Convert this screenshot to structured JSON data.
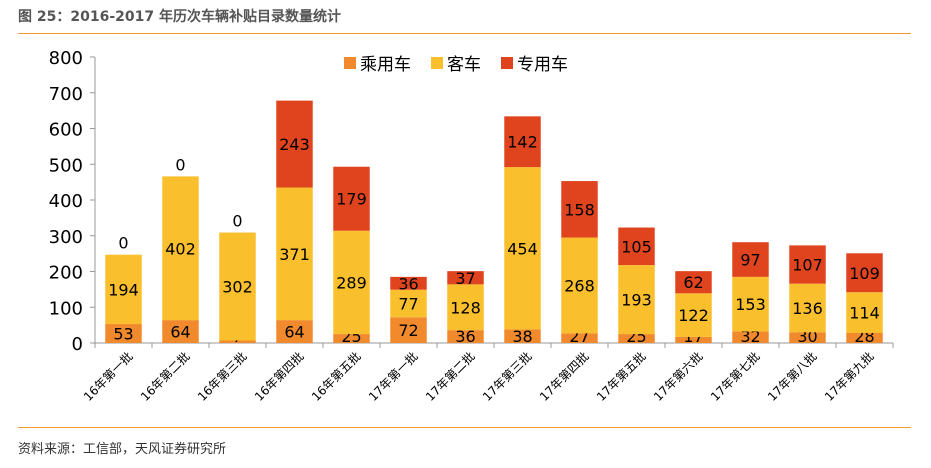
{
  "header": {
    "title": "图 25：2016-2017 年历次车辆补贴目录数量统计"
  },
  "footer": {
    "source": "资料来源：工信部，天风证券研究所"
  },
  "colors": {
    "accent_rule": "#F39A2E",
    "passenger": "#F08A2C",
    "bus": "#FABF2D",
    "special": "#E0441F"
  },
  "chart_data": {
    "type": "bar",
    "stacked": true,
    "categories": [
      "16年第一批",
      "16年第二批",
      "16年第三批",
      "16年第四批",
      "16年第五批",
      "17年第一批",
      "17年第二批",
      "17年第三批",
      "17年第四批",
      "17年第五批",
      "17年第六批",
      "17年第七批",
      "17年第八批",
      "17年第九批"
    ],
    "series": [
      {
        "name": "乘用车",
        "color": "#F08A2C",
        "values": [
          53,
          64,
          7,
          64,
          25,
          72,
          36,
          38,
          27,
          25,
          17,
          32,
          30,
          28
        ]
      },
      {
        "name": "客车",
        "color": "#FABF2D",
        "values": [
          194,
          402,
          302,
          371,
          289,
          77,
          128,
          454,
          268,
          193,
          122,
          153,
          136,
          114
        ]
      },
      {
        "name": "专用车",
        "color": "#E0441F",
        "values": [
          0,
          0,
          0,
          243,
          179,
          36,
          37,
          142,
          158,
          105,
          62,
          97,
          107,
          109
        ]
      }
    ],
    "ylim": [
      0,
      800
    ],
    "yticks": [
      0,
      100,
      200,
      300,
      400,
      500,
      600,
      700,
      800
    ],
    "legend_position": "top-center",
    "grid": false
  }
}
